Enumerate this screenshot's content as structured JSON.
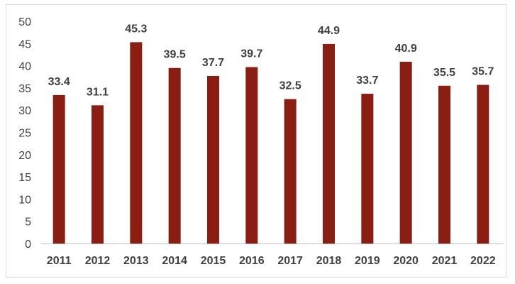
{
  "chart_data": {
    "type": "bar",
    "title": "",
    "xlabel": "",
    "ylabel": "",
    "categories": [
      "2011",
      "2012",
      "2013",
      "2014",
      "2015",
      "2016",
      "2017",
      "2018",
      "2019",
      "2020",
      "2021",
      "2022"
    ],
    "values": [
      33.4,
      31.1,
      45.3,
      39.5,
      37.7,
      39.7,
      32.5,
      44.9,
      33.7,
      40.9,
      35.5,
      35.7
    ],
    "data_labels": [
      "33.4",
      "31.1",
      "45.3",
      "39.5",
      "37.7",
      "39.7",
      "32.5",
      "44.9",
      "33.7",
      "40.9",
      "35.5",
      "35.7"
    ],
    "ylim": [
      0,
      50
    ],
    "yticks": [
      0,
      5,
      10,
      15,
      20,
      25,
      30,
      35,
      40,
      45,
      50
    ],
    "ytick_labels": [
      "0",
      "5",
      "10",
      "15",
      "20",
      "25",
      "30",
      "35",
      "40",
      "45",
      "50"
    ],
    "grid": false,
    "legend": "none",
    "colors": {
      "bar": "#8b1e12",
      "axis": "#bfbfbf",
      "text": "#404040"
    }
  }
}
